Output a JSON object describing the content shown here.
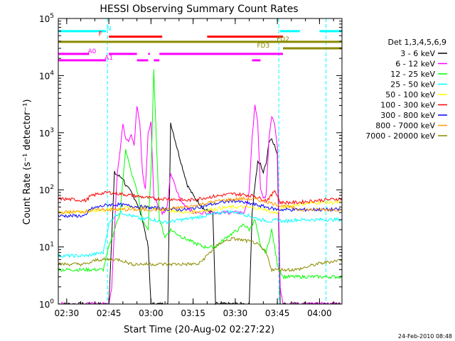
{
  "chart_data": {
    "type": "line",
    "title": "HESSI Observing Summary Count Rates",
    "xlabel": "Start Time (20-Aug-02 02:27:22)",
    "ylabel": "Count Rate (s⁻¹ detector⁻¹)",
    "yscale": "log",
    "xlim": [
      0,
      101
    ],
    "ylim": [
      1,
      100000
    ],
    "x_ticks": [
      {
        "t": 3,
        "label": "02:30"
      },
      {
        "t": 18,
        "label": "02:45"
      },
      {
        "t": 33,
        "label": "03:00"
      },
      {
        "t": 48,
        "label": "03:15"
      },
      {
        "t": 63,
        "label": "03:30"
      },
      {
        "t": 78,
        "label": "03:45"
      },
      {
        "t": 93,
        "label": "04:00"
      }
    ],
    "y_ticks": [
      {
        "v": 1,
        "base": "10",
        "exp": "0"
      },
      {
        "v": 10,
        "base": "10",
        "exp": "1"
      },
      {
        "v": 100,
        "base": "10",
        "exp": "2"
      },
      {
        "v": 1000,
        "base": "10",
        "exp": "3"
      },
      {
        "v": 10000,
        "base": "10",
        "exp": "4"
      },
      {
        "v": 100000,
        "base": "10",
        "exp": "5"
      }
    ],
    "x_unit": "minutes since 02:27:22",
    "legend_title": "Det 1,3,4,5,6,9",
    "legend_position": "right",
    "series": [
      {
        "name": "3 - 6 keV",
        "color": "#000000",
        "x": [
          0,
          10,
          18,
          20,
          21,
          23,
          24,
          26,
          28,
          30,
          32,
          33,
          35,
          36,
          38,
          39,
          40,
          43,
          46,
          48,
          50,
          52,
          55,
          56,
          58,
          60,
          62,
          64,
          66,
          67,
          68,
          69,
          70,
          71,
          72,
          73,
          74,
          75,
          76,
          77,
          78,
          79,
          85,
          92,
          101
        ],
        "y": [
          1,
          1,
          1,
          200,
          180,
          160,
          120,
          90,
          60,
          30,
          10,
          1,
          1,
          1,
          1,
          1,
          1500,
          400,
          120,
          80,
          60,
          45,
          40,
          1,
          1,
          1,
          1,
          1,
          1,
          1,
          1,
          40,
          120,
          300,
          280,
          200,
          300,
          700,
          800,
          600,
          400,
          1,
          1,
          1,
          1
        ]
      },
      {
        "name": "6 - 12 keV",
        "color": "#ff00ff",
        "x": [
          0,
          10,
          17,
          18,
          19,
          20,
          21,
          22,
          23,
          24,
          25,
          26,
          27,
          28,
          29,
          30,
          31,
          32,
          33,
          34,
          35,
          36,
          37,
          38,
          39,
          40,
          42,
          44,
          46,
          48,
          50,
          52,
          54,
          56,
          58,
          60,
          62,
          64,
          66,
          67,
          68,
          69,
          70,
          71,
          72,
          73,
          74,
          75,
          76,
          77,
          78,
          79,
          80,
          85,
          92,
          101
        ],
        "y": [
          1,
          1,
          1,
          1,
          2,
          20,
          200,
          500,
          1500,
          800,
          700,
          900,
          600,
          3000,
          1500,
          200,
          100,
          1000,
          1500,
          80,
          60,
          50,
          40,
          40,
          60,
          200,
          100,
          60,
          50,
          40,
          40,
          40,
          40,
          40,
          40,
          40,
          40,
          40,
          40,
          50,
          100,
          800,
          3000,
          1500,
          100,
          70,
          80,
          800,
          2000,
          1500,
          600,
          2,
          1,
          1,
          1,
          1
        ]
      },
      {
        "name": "12 - 25 keV",
        "color": "#00ff00",
        "x": [
          0,
          5,
          10,
          16,
          18,
          20,
          22,
          24,
          26,
          28,
          30,
          32,
          33,
          34,
          36,
          38,
          40,
          44,
          48,
          52,
          56,
          60,
          64,
          66,
          68,
          70,
          72,
          74,
          76,
          78,
          80,
          85,
          90,
          95,
          101
        ],
        "y": [
          4,
          4,
          4,
          4,
          10,
          20,
          40,
          500,
          200,
          100,
          30,
          20,
          200,
          12000,
          30,
          15,
          20,
          15,
          12,
          10,
          10,
          15,
          20,
          25,
          20,
          30,
          10,
          8,
          20,
          5,
          3,
          3,
          3,
          3,
          3
        ]
      },
      {
        "name": "25 - 50 keV",
        "color": "#00ffff",
        "x": [
          0,
          8,
          10,
          16,
          18,
          20,
          22,
          24,
          26,
          28,
          30,
          32,
          34,
          36,
          38,
          40,
          44,
          48,
          52,
          56,
          60,
          64,
          68,
          72,
          76,
          78,
          80,
          85,
          92,
          101
        ],
        "y": [
          7,
          7,
          7,
          8,
          25,
          35,
          40,
          38,
          35,
          33,
          30,
          32,
          30,
          28,
          27,
          28,
          30,
          32,
          35,
          38,
          42,
          40,
          35,
          30,
          28,
          30,
          28,
          30,
          30,
          30
        ]
      },
      {
        "name": "50 - 100 keV",
        "color": "#ffff00",
        "x": [
          0,
          10,
          18,
          22,
          26,
          30,
          34,
          38,
          42,
          46,
          50,
          54,
          58,
          62,
          66,
          70,
          74,
          76,
          78,
          80,
          85,
          92,
          101
        ],
        "y": [
          40,
          42,
          45,
          47,
          50,
          50,
          48,
          45,
          42,
          40,
          42,
          45,
          48,
          50,
          50,
          48,
          45,
          40,
          40,
          50,
          55,
          60,
          60
        ]
      },
      {
        "name": "100 - 300 keV",
        "color": "#ff0000",
        "x": [
          0,
          10,
          11,
          14,
          18,
          22,
          26,
          30,
          34,
          38,
          42,
          46,
          50,
          54,
          58,
          62,
          66,
          70,
          72,
          74,
          76,
          77,
          78,
          79,
          80,
          85,
          92,
          101
        ],
        "y": [
          70,
          65,
          75,
          85,
          90,
          85,
          80,
          75,
          70,
          70,
          68,
          65,
          70,
          75,
          80,
          85,
          82,
          78,
          70,
          65,
          80,
          100,
          80,
          60,
          60,
          60,
          65,
          70
        ]
      },
      {
        "name": "300 - 800 keV",
        "color": "#0000ff",
        "x": [
          0,
          10,
          11,
          14,
          18,
          22,
          26,
          30,
          34,
          38,
          42,
          46,
          50,
          54,
          58,
          62,
          66,
          70,
          74,
          78,
          80,
          85,
          92,
          101
        ],
        "y": [
          35,
          35,
          45,
          50,
          55,
          55,
          52,
          50,
          48,
          46,
          45,
          45,
          50,
          55,
          60,
          65,
          60,
          55,
          50,
          45,
          45,
          45,
          45,
          45
        ]
      },
      {
        "name": "800 - 7000 keV",
        "color": "#ff9900",
        "x": [
          0,
          10,
          14,
          18,
          22,
          26,
          30,
          34,
          38,
          42,
          46,
          50,
          54,
          58,
          62,
          66,
          70,
          74,
          78,
          82,
          86,
          92,
          101
        ],
        "y": [
          40,
          42,
          45,
          45,
          45,
          45,
          45,
          45,
          45,
          48,
          50,
          55,
          60,
          65,
          68,
          70,
          68,
          62,
          55,
          50,
          45,
          45,
          45
        ]
      },
      {
        "name": "7000 - 20000 keV",
        "color": "#8b8b00",
        "x": [
          0,
          10,
          14,
          18,
          22,
          26,
          30,
          34,
          38,
          42,
          46,
          50,
          54,
          58,
          62,
          66,
          70,
          74,
          76,
          78,
          80,
          85,
          92,
          101
        ],
        "y": [
          5,
          5,
          6,
          6,
          6,
          5,
          5,
          5,
          5,
          5,
          5,
          5,
          8,
          12,
          14,
          13,
          12,
          8,
          4,
          4,
          4,
          4,
          5,
          6
        ]
      }
    ],
    "flags": [
      {
        "label": "N",
        "color": "#00ffff",
        "segments": [
          [
            0,
            17
          ],
          [
            79,
            86
          ],
          [
            93,
            101
          ]
        ],
        "level": 60000,
        "label_x": 18
      },
      {
        "label": "F",
        "color": "#ff0000",
        "segments": [
          [
            18,
            37
          ],
          [
            53,
            80
          ]
        ],
        "level": 48000,
        "label_x": 15
      },
      {
        "label": "FD2",
        "color": "#8b8b00",
        "segments": [
          [
            0,
            101
          ]
        ],
        "level": 39000,
        "label_x": 80
      },
      {
        "label": "FD3",
        "color": "#8b8b00",
        "segments": [
          [
            80,
            101
          ]
        ],
        "level": 30000,
        "label_x": 73
      },
      {
        "label": "A0",
        "color": "#ff00ff",
        "segments": [
          [
            0,
            11
          ],
          [
            18,
            28
          ],
          [
            32,
            32.6
          ],
          [
            36,
            80
          ]
        ],
        "level": 24000,
        "label_x": 12
      },
      {
        "label": "A1",
        "color": "#ff00ff",
        "segments": [
          [
            0,
            17
          ],
          [
            28,
            32
          ],
          [
            34,
            36
          ],
          [
            69,
            72
          ]
        ],
        "level": 18500,
        "label_x": 18
      }
    ],
    "event_lines": [
      {
        "x": 17.5,
        "color": "#00ffff"
      },
      {
        "x": 78.5,
        "color": "#00ffff"
      },
      {
        "x": 95.3,
        "color": "#00ffff"
      }
    ]
  },
  "footer": {
    "timestamp": "24-Feb-2010 08:48"
  }
}
